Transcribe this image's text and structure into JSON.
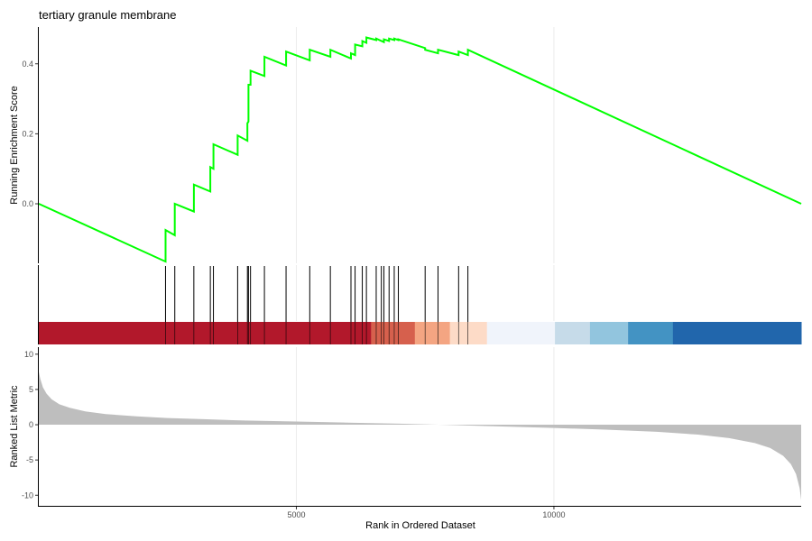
{
  "chart_data": {
    "type": "line",
    "title": "tertiary granule membrane",
    "xlabel": "Rank in Ordered Dataset",
    "xlim": [
      0,
      14800
    ],
    "x_ticks": [
      5000,
      10000
    ],
    "es_panel": {
      "ylabel": "Running Enrichment Score",
      "ylim": [
        -0.17,
        0.505
      ],
      "y_ticks": [
        0.0,
        0.2,
        0.4
      ],
      "line_color": "#00ff00",
      "grid": true,
      "curve": [
        [
          0,
          0.0
        ],
        [
          2460,
          -0.165
        ],
        [
          2460,
          -0.075
        ],
        [
          2640,
          -0.09
        ],
        [
          2640,
          0.0
        ],
        [
          3010,
          -0.022
        ],
        [
          3010,
          0.055
        ],
        [
          3330,
          0.035
        ],
        [
          3330,
          0.105
        ],
        [
          3390,
          0.1
        ],
        [
          3390,
          0.17
        ],
        [
          3860,
          0.14
        ],
        [
          3860,
          0.195
        ],
        [
          4050,
          0.18
        ],
        [
          4050,
          0.23
        ],
        [
          4070,
          0.235
        ],
        [
          4070,
          0.34
        ],
        [
          4110,
          0.34
        ],
        [
          4110,
          0.38
        ],
        [
          4380,
          0.365
        ],
        [
          4380,
          0.42
        ],
        [
          4800,
          0.395
        ],
        [
          4800,
          0.435
        ],
        [
          5260,
          0.41
        ],
        [
          5260,
          0.44
        ],
        [
          5660,
          0.42
        ],
        [
          5660,
          0.44
        ],
        [
          6060,
          0.415
        ],
        [
          6060,
          0.43
        ],
        [
          6140,
          0.425
        ],
        [
          6140,
          0.455
        ],
        [
          6280,
          0.45
        ],
        [
          6280,
          0.465
        ],
        [
          6360,
          0.46
        ],
        [
          6360,
          0.475
        ],
        [
          6550,
          0.468
        ],
        [
          6550,
          0.472
        ],
        [
          6700,
          0.462
        ],
        [
          6700,
          0.47
        ],
        [
          6800,
          0.465
        ],
        [
          6800,
          0.472
        ],
        [
          6900,
          0.468
        ],
        [
          6900,
          0.472
        ],
        [
          6980,
          0.468
        ],
        [
          6980,
          0.47
        ],
        [
          7500,
          0.445
        ],
        [
          7500,
          0.44
        ],
        [
          7750,
          0.43
        ],
        [
          7750,
          0.44
        ],
        [
          8150,
          0.425
        ],
        [
          8150,
          0.435
        ],
        [
          8330,
          0.425
        ],
        [
          8330,
          0.44
        ],
        [
          14800,
          0.0
        ]
      ]
    },
    "hits_panel": {
      "line_color": "#000000",
      "positions": [
        2460,
        2640,
        3010,
        3330,
        3390,
        3860,
        4050,
        4070,
        4110,
        4380,
        4800,
        5260,
        5660,
        6060,
        6140,
        6280,
        6360,
        6550,
        6650,
        6700,
        6800,
        6900,
        6980,
        7500,
        7750,
        8150,
        8330
      ],
      "color_bands": [
        {
          "from": 0,
          "to": 6450,
          "color": "#b2182b"
        },
        {
          "from": 6450,
          "to": 7300,
          "color": "#d6604d"
        },
        {
          "from": 7300,
          "to": 7980,
          "color": "#f4a582"
        },
        {
          "from": 7980,
          "to": 8700,
          "color": "#fddbc7"
        },
        {
          "from": 8700,
          "to": 10020,
          "color": "#f0f4fb"
        },
        {
          "from": 10020,
          "to": 10700,
          "color": "#c6dbe9"
        },
        {
          "from": 10700,
          "to": 11440,
          "color": "#92c5de"
        },
        {
          "from": 11440,
          "to": 12310,
          "color": "#4393c3"
        },
        {
          "from": 12310,
          "to": 14800,
          "color": "#2166ac"
        }
      ]
    },
    "metric_panel": {
      "ylabel": "Ranked List Metric",
      "ylim": [
        -11.5,
        11.0
      ],
      "y_ticks": [
        10,
        5,
        0,
        -5,
        -10
      ],
      "fill_color": "#bebebe",
      "profile": [
        [
          0,
          7.5
        ],
        [
          30,
          6.5
        ],
        [
          80,
          5.3
        ],
        [
          150,
          4.4
        ],
        [
          250,
          3.6
        ],
        [
          400,
          2.9
        ],
        [
          600,
          2.4
        ],
        [
          900,
          1.9
        ],
        [
          1300,
          1.5
        ],
        [
          1900,
          1.2
        ],
        [
          2500,
          0.95
        ],
        [
          3200,
          0.78
        ],
        [
          4000,
          0.6
        ],
        [
          5000,
          0.45
        ],
        [
          6000,
          0.3
        ],
        [
          7000,
          0.15
        ],
        [
          7600,
          0.05
        ],
        [
          8000,
          -0.05
        ],
        [
          9000,
          -0.25
        ],
        [
          10000,
          -0.45
        ],
        [
          11000,
          -0.7
        ],
        [
          12000,
          -1.0
        ],
        [
          12800,
          -1.4
        ],
        [
          13400,
          -1.9
        ],
        [
          13900,
          -2.6
        ],
        [
          14200,
          -3.3
        ],
        [
          14450,
          -4.4
        ],
        [
          14600,
          -5.6
        ],
        [
          14700,
          -7.0
        ],
        [
          14770,
          -9.0
        ],
        [
          14800,
          -10.7
        ]
      ]
    }
  }
}
